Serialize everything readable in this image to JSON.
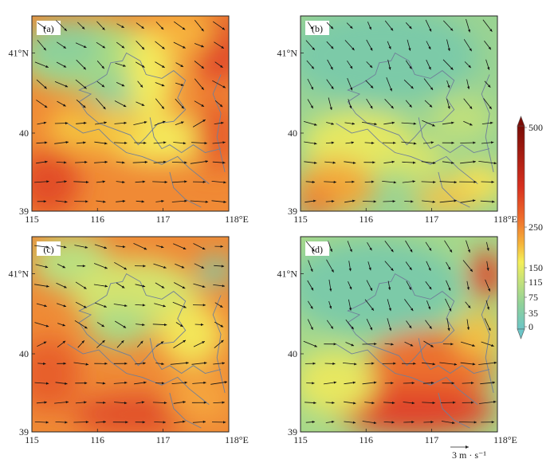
{
  "panels": [
    {
      "label": "(a)",
      "scheme": "a"
    },
    {
      "label": "(b)",
      "scheme": "b"
    },
    {
      "label": "(c)",
      "scheme": "c"
    },
    {
      "label": "(d)",
      "scheme": "d"
    }
  ],
  "axes": {
    "x_ticks": [
      "115",
      "116",
      "117",
      "118°E"
    ],
    "y_ticks": [
      "41°N",
      "40",
      "39"
    ]
  },
  "colorbar": {
    "ticks": [
      "500",
      "250",
      "150",
      "115",
      "75",
      "35",
      "0"
    ],
    "colors": [
      "#6cc5c7",
      "#8fd19a",
      "#c6e27a",
      "#f4ef5a",
      "#f5b43a",
      "#ee6b2b",
      "#d7301f",
      "#7a0c06"
    ]
  },
  "wind_reference": {
    "label": "3 m · s⁻¹"
  }
}
